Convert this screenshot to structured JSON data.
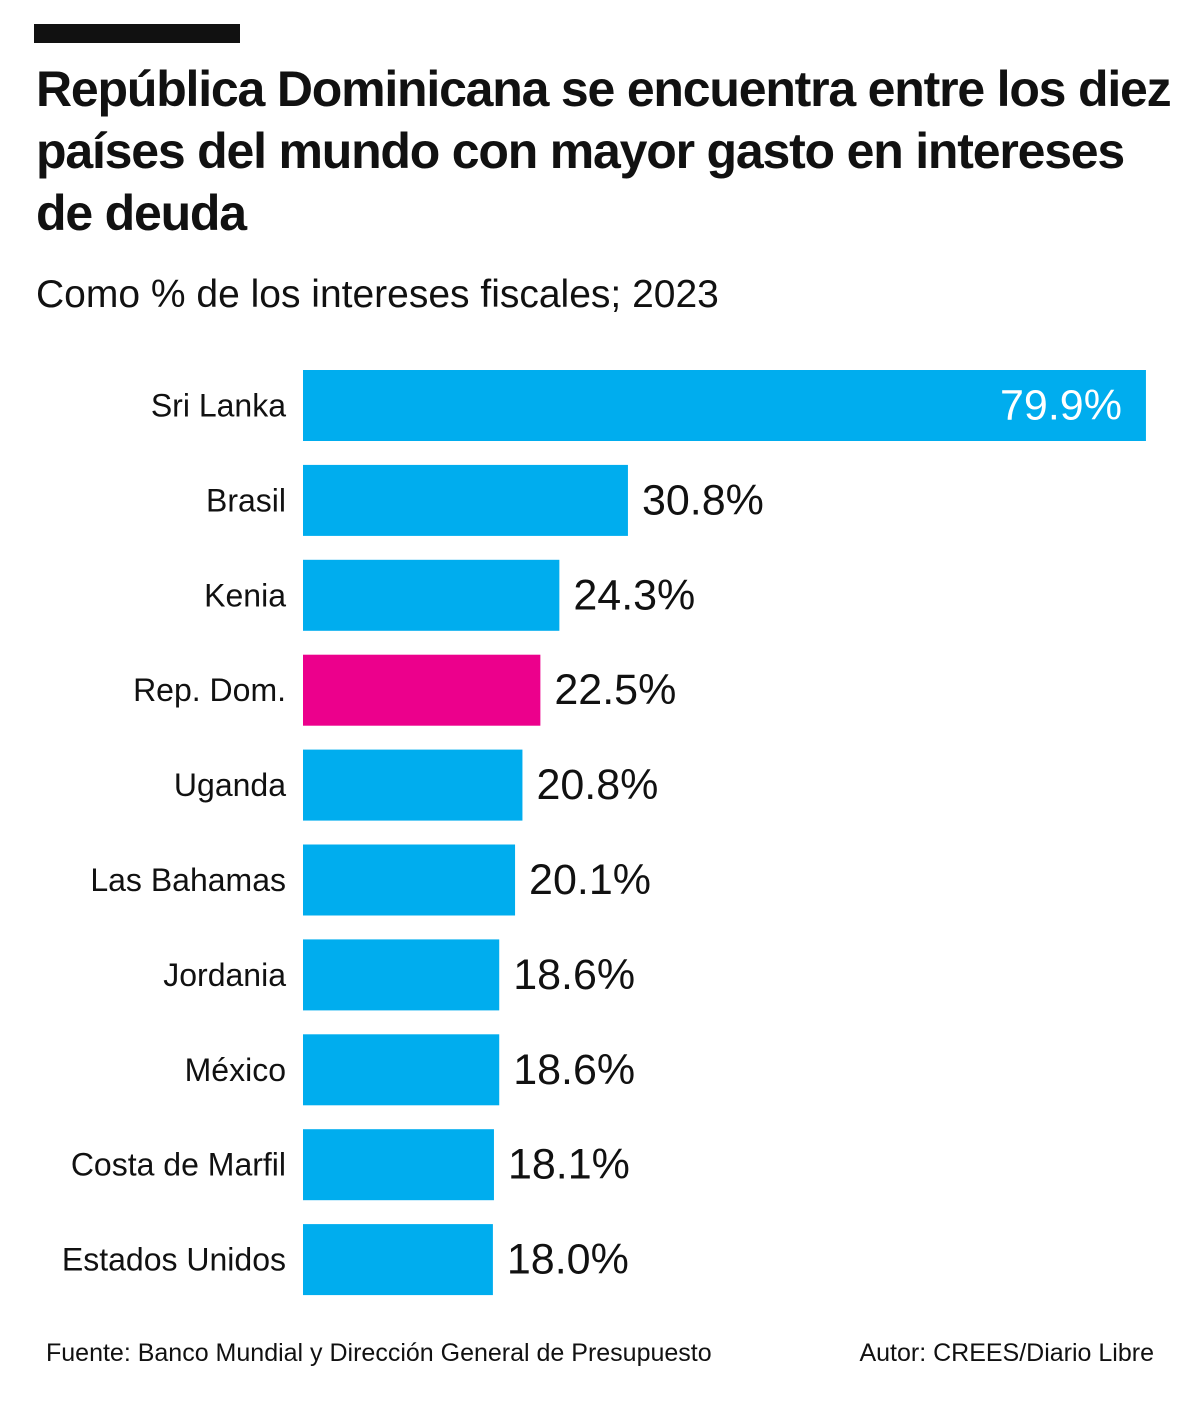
{
  "chart_data": {
    "type": "bar",
    "orientation": "horizontal",
    "title": "República Dominicana se encuentra entre los diez países del mundo con mayor gasto en intereses de deuda",
    "subtitle": "Como % de los intereses fiscales; 2023",
    "categories": [
      "Sri Lanka",
      "Brasil",
      "Kenia",
      "Rep. Dom.",
      "Uganda",
      "Las Bahamas",
      "Jordania",
      "México",
      "Costa de Marfil",
      "Estados Unidos"
    ],
    "values": [
      79.9,
      30.8,
      24.3,
      22.5,
      20.8,
      20.1,
      18.6,
      18.6,
      18.1,
      18.0
    ],
    "value_labels": [
      "79.9%",
      "30.8%",
      "24.3%",
      "22.5%",
      "20.8%",
      "20.1%",
      "18.6%",
      "18.6%",
      "18.1%",
      "18.0%"
    ],
    "highlight_category": "Rep. Dom.",
    "xlim": [
      0,
      80
    ],
    "xlabel": "",
    "ylabel": "",
    "grid": false
  },
  "colors": {
    "bar": "#00adee",
    "highlight": "#ec008c",
    "text": "#111111",
    "label_inside": "#ffffff"
  },
  "footer": {
    "source": "Fuente:  Banco Mundial y Dirección General de Presupuesto",
    "author": "Autor: CREES/Diario Libre"
  }
}
